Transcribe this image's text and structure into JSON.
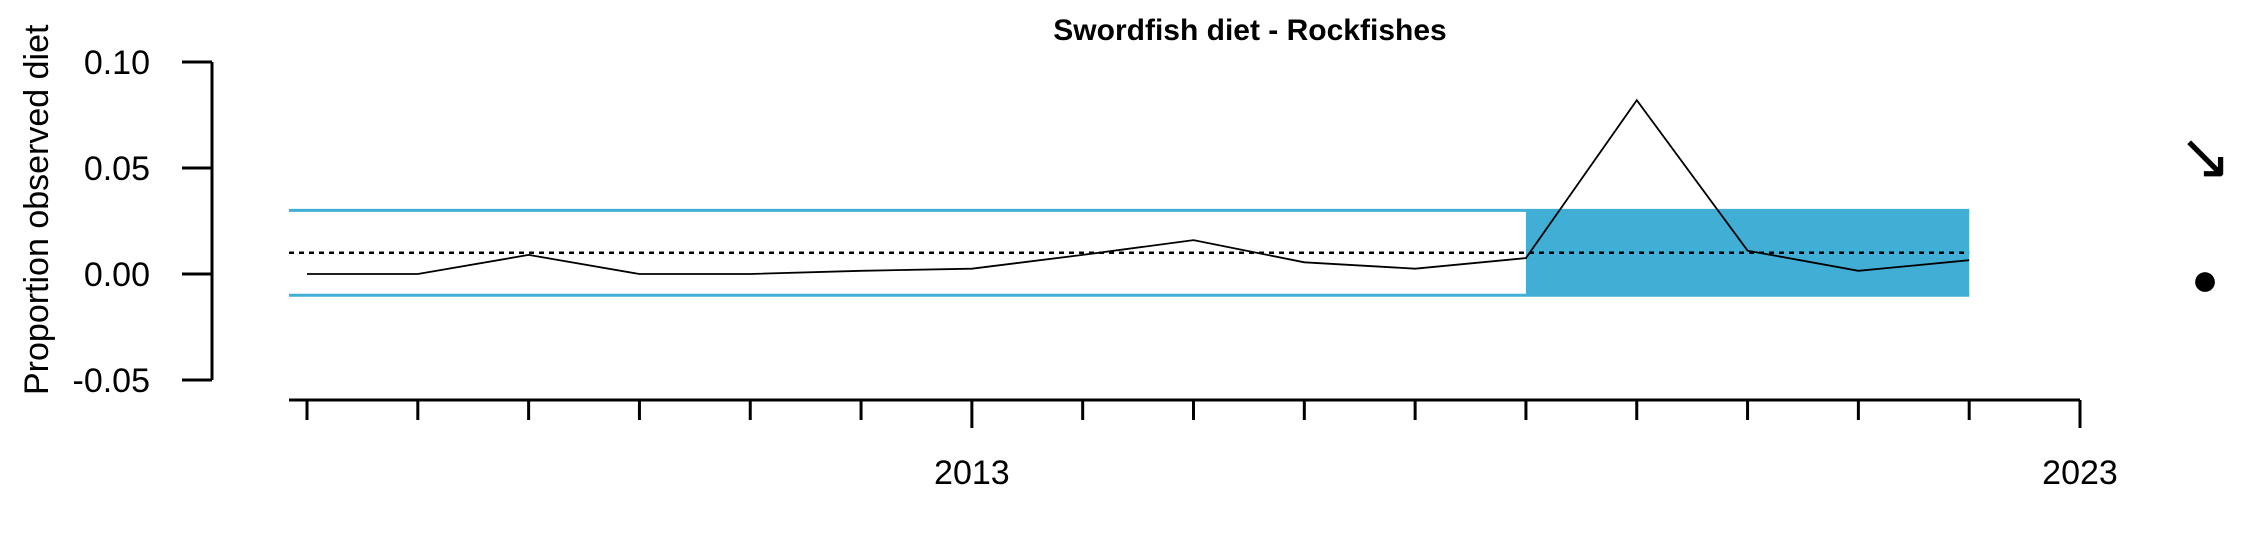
{
  "chart_data": {
    "type": "line",
    "title": "Swordfish diet - Rockfishes",
    "xlabel": "",
    "ylabel": "Proportion observed diet",
    "xlim": [
      2007,
      2023
    ],
    "ylim": [
      -0.05,
      0.1
    ],
    "y_ticks": [
      0.1,
      0.05,
      0.0,
      -0.05
    ],
    "y_tick_labels": [
      "0.10",
      "0.05",
      "0.00",
      "-0.05"
    ],
    "x_ticks_minor": [
      2007,
      2008,
      2009,
      2010,
      2011,
      2012,
      2013,
      2014,
      2015,
      2016,
      2017,
      2018,
      2019,
      2020,
      2021,
      2022,
      2023
    ],
    "x_tick_labels": [
      {
        "value": 2013,
        "label": "2013"
      },
      {
        "value": 2023,
        "label": "2023"
      }
    ],
    "series": [
      {
        "x": [
          2007,
          2008,
          2009,
          2010,
          2011,
          2012,
          2013,
          2014,
          2015,
          2016,
          2017,
          2018,
          2019,
          2020,
          2021,
          2022
        ],
        "y": [
          0.0,
          0.0,
          0.009,
          0.0,
          0.0,
          0.0015,
          0.0025,
          0.009,
          0.016,
          0.0055,
          0.0025,
          0.0075,
          0.082,
          0.011,
          0.0015,
          0.0065
        ]
      }
    ],
    "mean": 0.01,
    "band_upper": 0.03,
    "band_lower": -0.01,
    "highlight_start": 2018,
    "highlight_end": 2022,
    "trend_symbol": "↘",
    "status_symbol": "●",
    "colors": {
      "band": "#41aed6",
      "line": "#000000",
      "mean": "#000000"
    }
  }
}
